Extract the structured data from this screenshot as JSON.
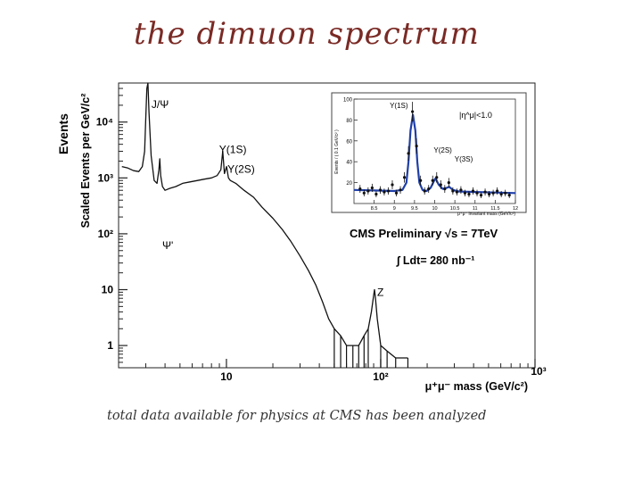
{
  "slide": {
    "title": "the dimuon spectrum",
    "caption": "total data available for physics at CMS has been analyzed"
  },
  "chart_data": [
    {
      "type": "line",
      "title": "",
      "ylabel_top": "Events",
      "ylabel": "Scaled Events per GeV/c²",
      "xlabel": "μ⁺μ⁻ mass (GeV/c²)",
      "xscale": "log",
      "yscale": "log",
      "xlim": [
        2,
        1000
      ],
      "ylim": [
        0.4,
        50000
      ],
      "x_ticks": [
        {
          "value": 10,
          "label": "10"
        },
        {
          "value": 100,
          "label": "10²"
        },
        {
          "value": 1000,
          "label": "10³"
        }
      ],
      "y_ticks": [
        {
          "value": 1,
          "label": "1"
        },
        {
          "value": 10,
          "label": "10"
        },
        {
          "value": 100,
          "label": "10²"
        },
        {
          "value": 1000,
          "label": "10³"
        },
        {
          "value": 10000,
          "label": "10⁴"
        }
      ],
      "series": [
        {
          "x": [
            2.1,
            2.3,
            2.5,
            2.7,
            2.85,
            2.95,
            3.0,
            3.05,
            3.1,
            3.15,
            3.25,
            3.4,
            3.55,
            3.65,
            3.7,
            3.75,
            3.85,
            4.0,
            4.3,
            4.7,
            5.2,
            5.8,
            6.5,
            7.2,
            8.0,
            8.7,
            9.2,
            9.46,
            9.7,
            10.02,
            10.3,
            10.6,
            11.5,
            13,
            15,
            17,
            20,
            23,
            26,
            30,
            34,
            38,
            42,
            46,
            50,
            55,
            60,
            66,
            72,
            78,
            83,
            87,
            90,
            91.2,
            92.5,
            95,
            100,
            110,
            125,
            150
          ],
          "y": [
            1600,
            1500,
            1350,
            1300,
            1600,
            3000,
            12000,
            40000,
            50000,
            15000,
            2500,
            900,
            800,
            1400,
            2200,
            1100,
            700,
            600,
            650,
            700,
            800,
            850,
            900,
            950,
            1000,
            1100,
            1400,
            3000,
            1200,
            1600,
            1000,
            900,
            800,
            600,
            450,
            300,
            190,
            120,
            75,
            40,
            22,
            12,
            6,
            3,
            2,
            1.5,
            1,
            1,
            1,
            1.5,
            2,
            4,
            8,
            10,
            7,
            3,
            1,
            0.8,
            0.6,
            0.6
          ]
        }
      ],
      "annotations": [
        {
          "text": "J/Ψ",
          "x": 3.1
        },
        {
          "text": "Ψ'",
          "x": 3.69
        },
        {
          "text": "Υ(1S)",
          "x": 9.46
        },
        {
          "text": "Υ(2S)",
          "x": 10.02
        },
        {
          "text": "Z",
          "x": 91.2
        }
      ],
      "text_labels": {
        "experiment": "CMS Preliminary √s = 7TeV",
        "luminosity": "∫ Ldt= 280 nb⁻¹"
      }
    },
    {
      "type": "line",
      "title": "",
      "ylabel": "Events / ( 0.1 GeV/c² )",
      "xlabel": "μ⁺μ⁻ invariant mass (GeV/c²)",
      "xlim": [
        8,
        12
      ],
      "ylim": [
        0,
        100
      ],
      "x_ticks": [
        8.5,
        9,
        9.5,
        10,
        10.5,
        11,
        11.5,
        12
      ],
      "y_ticks": [
        20,
        40,
        60,
        80,
        100
      ],
      "annotations": [
        {
          "text": "Υ(1S)",
          "x": 9.46
        },
        {
          "text": "Υ(2S)",
          "x": 10.02
        },
        {
          "text": "Υ(3S)",
          "x": 10.36
        }
      ],
      "cut_label": "|η^μ|<1.0",
      "points": {
        "x": [
          8.15,
          8.25,
          8.35,
          8.45,
          8.55,
          8.65,
          8.75,
          8.85,
          8.95,
          9.05,
          9.15,
          9.25,
          9.35,
          9.45,
          9.55,
          9.65,
          9.75,
          9.85,
          9.95,
          10.05,
          10.15,
          10.25,
          10.35,
          10.45,
          10.55,
          10.65,
          10.75,
          10.85,
          10.95,
          11.05,
          11.15,
          11.25,
          11.35,
          11.45,
          11.55,
          11.65,
          11.75,
          11.85
        ],
        "y": [
          14,
          10,
          12,
          15,
          9,
          13,
          11,
          12,
          18,
          10,
          13,
          25,
          48,
          88,
          55,
          22,
          12,
          14,
          22,
          25,
          18,
          14,
          20,
          12,
          11,
          13,
          10,
          9,
          12,
          10,
          8,
          11,
          9,
          10,
          12,
          9,
          10,
          8
        ]
      },
      "fit": {
        "x": [
          8.0,
          8.5,
          9.0,
          9.2,
          9.3,
          9.35,
          9.4,
          9.46,
          9.52,
          9.57,
          9.62,
          9.7,
          9.8,
          9.9,
          10.0,
          10.02,
          10.1,
          10.2,
          10.3,
          10.36,
          10.45,
          10.6,
          11.0,
          11.5,
          12.0
        ],
        "y": [
          13,
          12.5,
          12,
          13,
          20,
          40,
          70,
          85,
          70,
          40,
          20,
          13,
          12,
          15,
          23,
          24,
          18,
          14,
          15,
          16,
          13,
          11.5,
          11,
          10.5,
          10
        ]
      }
    }
  ]
}
